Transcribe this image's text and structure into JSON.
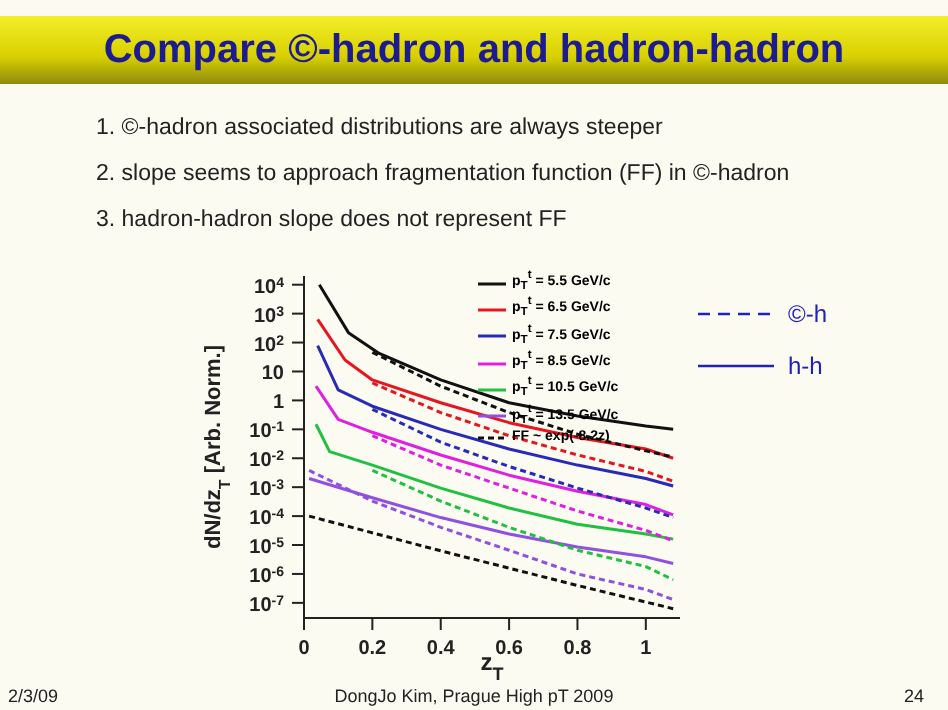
{
  "chart_data": {
    "type": "line",
    "title": "Compare ©-hadron and hadron-hadron",
    "xlabel": "z$_{T}$",
    "ylabel": "dN/dz$_{T}$ [Arb. Norm.]",
    "log": "y",
    "xlim": [
      0,
      1.1
    ],
    "xticks": [
      0,
      0.2,
      0.4,
      0.6,
      0.8,
      1
    ],
    "ylim": [
      3e-08,
      20000
    ],
    "yticks": [
      {
        "value": 1e-07,
        "label": "10$^{-7}$"
      },
      {
        "value": 1e-06,
        "label": "10$^{-6}$"
      },
      {
        "value": 1e-05,
        "label": "10$^{-5}$"
      },
      {
        "value": 0.0001,
        "label": "10$^{-4}$"
      },
      {
        "value": 0.001,
        "label": "10$^{-3}$"
      },
      {
        "value": 0.01,
        "label": "10$^{-2}$"
      },
      {
        "value": 0.1,
        "label": "10$^{-1}$"
      },
      1,
      10,
      {
        "value": 100,
        "label": "10$^{2}$"
      },
      {
        "value": 1000,
        "label": "10$^{3}$"
      },
      {
        "value": 10000,
        "label": "10$^{4}$"
      }
    ],
    "legend": "top right",
    "marker": "none",
    "series": [
      {
        "name": "p$_{T}$$^{t}$ = 5.5 GeV/c",
        "color": "#111111",
        "line_style": "solid",
        "x": [
          0.045,
          0.13,
          0.22,
          0.4,
          0.6,
          0.8,
          1.0,
          1.08
        ],
        "values": [
          10000,
          220,
          42,
          5.1,
          0.83,
          0.29,
          0.13,
          0.1
        ]
      },
      {
        "name": "p$_{T}$$^{t}$ = 6.5 GeV/c",
        "color": "#e8141e",
        "line_style": "solid",
        "x": [
          0.04,
          0.12,
          0.2,
          0.4,
          0.6,
          0.8,
          1.0,
          1.08
        ],
        "values": [
          630,
          25,
          5.1,
          0.83,
          0.17,
          0.052,
          0.021,
          0.01
        ]
      },
      {
        "name": "p$_{T}$$^{t}$ = 7.5 GeV/c",
        "color": "#2a2ab8",
        "line_style": "solid",
        "x": [
          0.04,
          0.1,
          0.2,
          0.4,
          0.6,
          0.8,
          1.0,
          1.08
        ],
        "values": [
          78,
          2.3,
          0.63,
          0.1,
          0.021,
          0.0058,
          0.002,
          0.0011
        ]
      },
      {
        "name": "p$_{T}$$^{t}$ = 8.5 GeV/c",
        "color": "#e020e0",
        "line_style": "solid",
        "x": [
          0.035,
          0.1,
          0.2,
          0.4,
          0.6,
          0.8,
          1.0,
          1.08
        ],
        "values": [
          3.1,
          0.22,
          0.079,
          0.013,
          0.0026,
          0.00072,
          0.00025,
          0.00011
        ]
      },
      {
        "name": "p$_{T}$$^{t}$ = 10.5 GeV/c",
        "color": "#20c040",
        "line_style": "solid",
        "x": [
          0.035,
          0.075,
          0.2,
          0.4,
          0.6,
          0.8,
          1.0,
          1.08
        ],
        "values": [
          0.15,
          0.017,
          0.0058,
          0.00093,
          0.00019,
          5.2e-05,
          2.4e-05,
          1.6e-05
        ]
      },
      {
        "name": "p$_{T}$$^{t}$ = 13.5 GeV/c",
        "color": "#9050e0",
        "line_style": "solid",
        "x": [
          0.015,
          0.2,
          0.4,
          0.6,
          0.8,
          1.0,
          1.08
        ],
        "values": [
          0.002,
          0.00043,
          8.9e-05,
          2.4e-05,
          8.5e-06,
          3.9e-06,
          2.3e-06
        ]
      },
      {
        "name": "FF ~ exp(-8.2z)",
        "color": "#111111",
        "line_style": "dashed",
        "x": [
          0.015,
          0.4,
          0.8,
          1.08
        ],
        "values": [
          0.0001,
          6.3e-06,
          4e-07,
          6.3e-08
        ]
      },
      {
        "color": "#111111",
        "line_style": "dashed",
        "x": [
          0.2,
          0.4,
          0.6,
          0.8,
          1.0,
          1.08
        ],
        "values": [
          46,
          3.1,
          0.38,
          0.068,
          0.018,
          0.011
        ]
      },
      {
        "color": "#e8141e",
        "line_style": "dashed",
        "x": [
          0.2,
          0.4,
          0.6,
          0.8,
          1.0,
          1.08
        ],
        "values": [
          4,
          0.38,
          0.06,
          0.013,
          0.0035,
          0.0016
        ]
      },
      {
        "color": "#2a2ab8",
        "line_style": "dashed",
        "x": [
          0.2,
          0.4,
          0.6,
          0.8,
          1.0,
          1.08
        ],
        "values": [
          0.49,
          0.036,
          0.0052,
          0.00093,
          0.00019,
          8.9e-05
        ]
      },
      {
        "color": "#e020e0",
        "line_style": "dashed",
        "x": [
          0.2,
          0.4,
          0.6,
          0.8,
          1.0,
          1.08
        ],
        "values": [
          0.06,
          0.0058,
          0.00093,
          0.00015,
          3.2e-05,
          1.4e-05
        ]
      },
      {
        "color": "#20c040",
        "line_style": "dashed",
        "x": [
          0.2,
          0.4,
          0.6,
          0.8,
          1.0,
          1.08
        ],
        "values": [
          0.0038,
          0.00033,
          4.1e-05,
          6.6e-06,
          1.8e-06,
          6.3e-07
        ]
      },
      {
        "color": "#9050e0",
        "line_style": "dashed",
        "x": [
          0.015,
          0.2,
          0.4,
          0.6,
          0.8,
          1.0,
          1.08
        ],
        "values": [
          0.0038,
          0.00033,
          4.1e-05,
          6.6e-06,
          1e-06,
          2.9e-07,
          1.3e-07
        ]
      }
    ],
    "annotations": [
      "1.  ©-hadron associated distributions are always steeper",
      "2.  slope seems to approach fragmentation function (FF) in ©-hadron",
      "3.  hadron-hadron slope does not represent FF",
      "©-h",
      "h-h",
      "2/3/09",
      "DongJo Kim, Prague High pT 2009",
      "24"
    ]
  }
}
